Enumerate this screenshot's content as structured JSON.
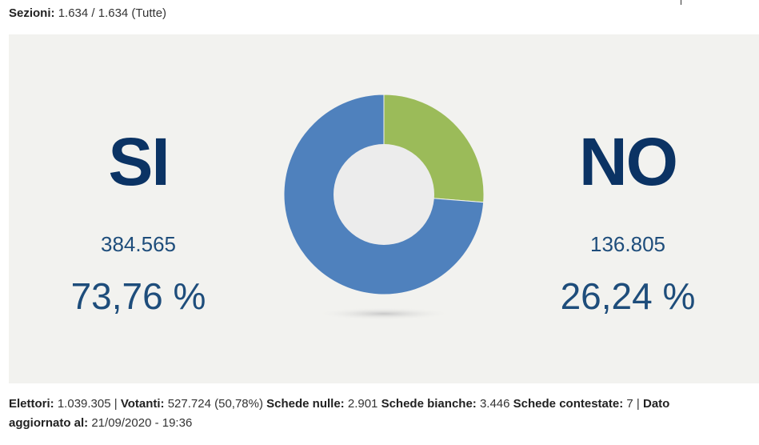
{
  "header": {
    "sezioni_label": "Sezioni:",
    "sezioni_value": "1.634 / 1.634 (Tutte)"
  },
  "chart_data": {
    "type": "pie",
    "style": "donut",
    "categories": [
      "SI",
      "NO"
    ],
    "values": [
      384565,
      136805
    ],
    "percentages": [
      73.76,
      26.24
    ],
    "colors": [
      "#4f81bd",
      "#9bbb59"
    ]
  },
  "si": {
    "label": "SI",
    "count": "384.565",
    "percent": "73,76 %"
  },
  "no": {
    "label": "NO",
    "count": "136.805",
    "percent": "26,24 %"
  },
  "footer": {
    "elettori_label": "Elettori:",
    "elettori": "1.039.305",
    "sep1": "|",
    "votanti_label": "Votanti:",
    "votanti": "527.724 (50,78%)",
    "nulle_label": "Schede nulle:",
    "nulle": "2.901",
    "bianche_label": "Schede bianche:",
    "bianche": "3.446",
    "contestate_label": "Schede contestate:",
    "contestate": "7",
    "sep2": "|",
    "dato_label": "Dato aggiornato al:",
    "dato": "21/09/2020 - 19:36"
  }
}
